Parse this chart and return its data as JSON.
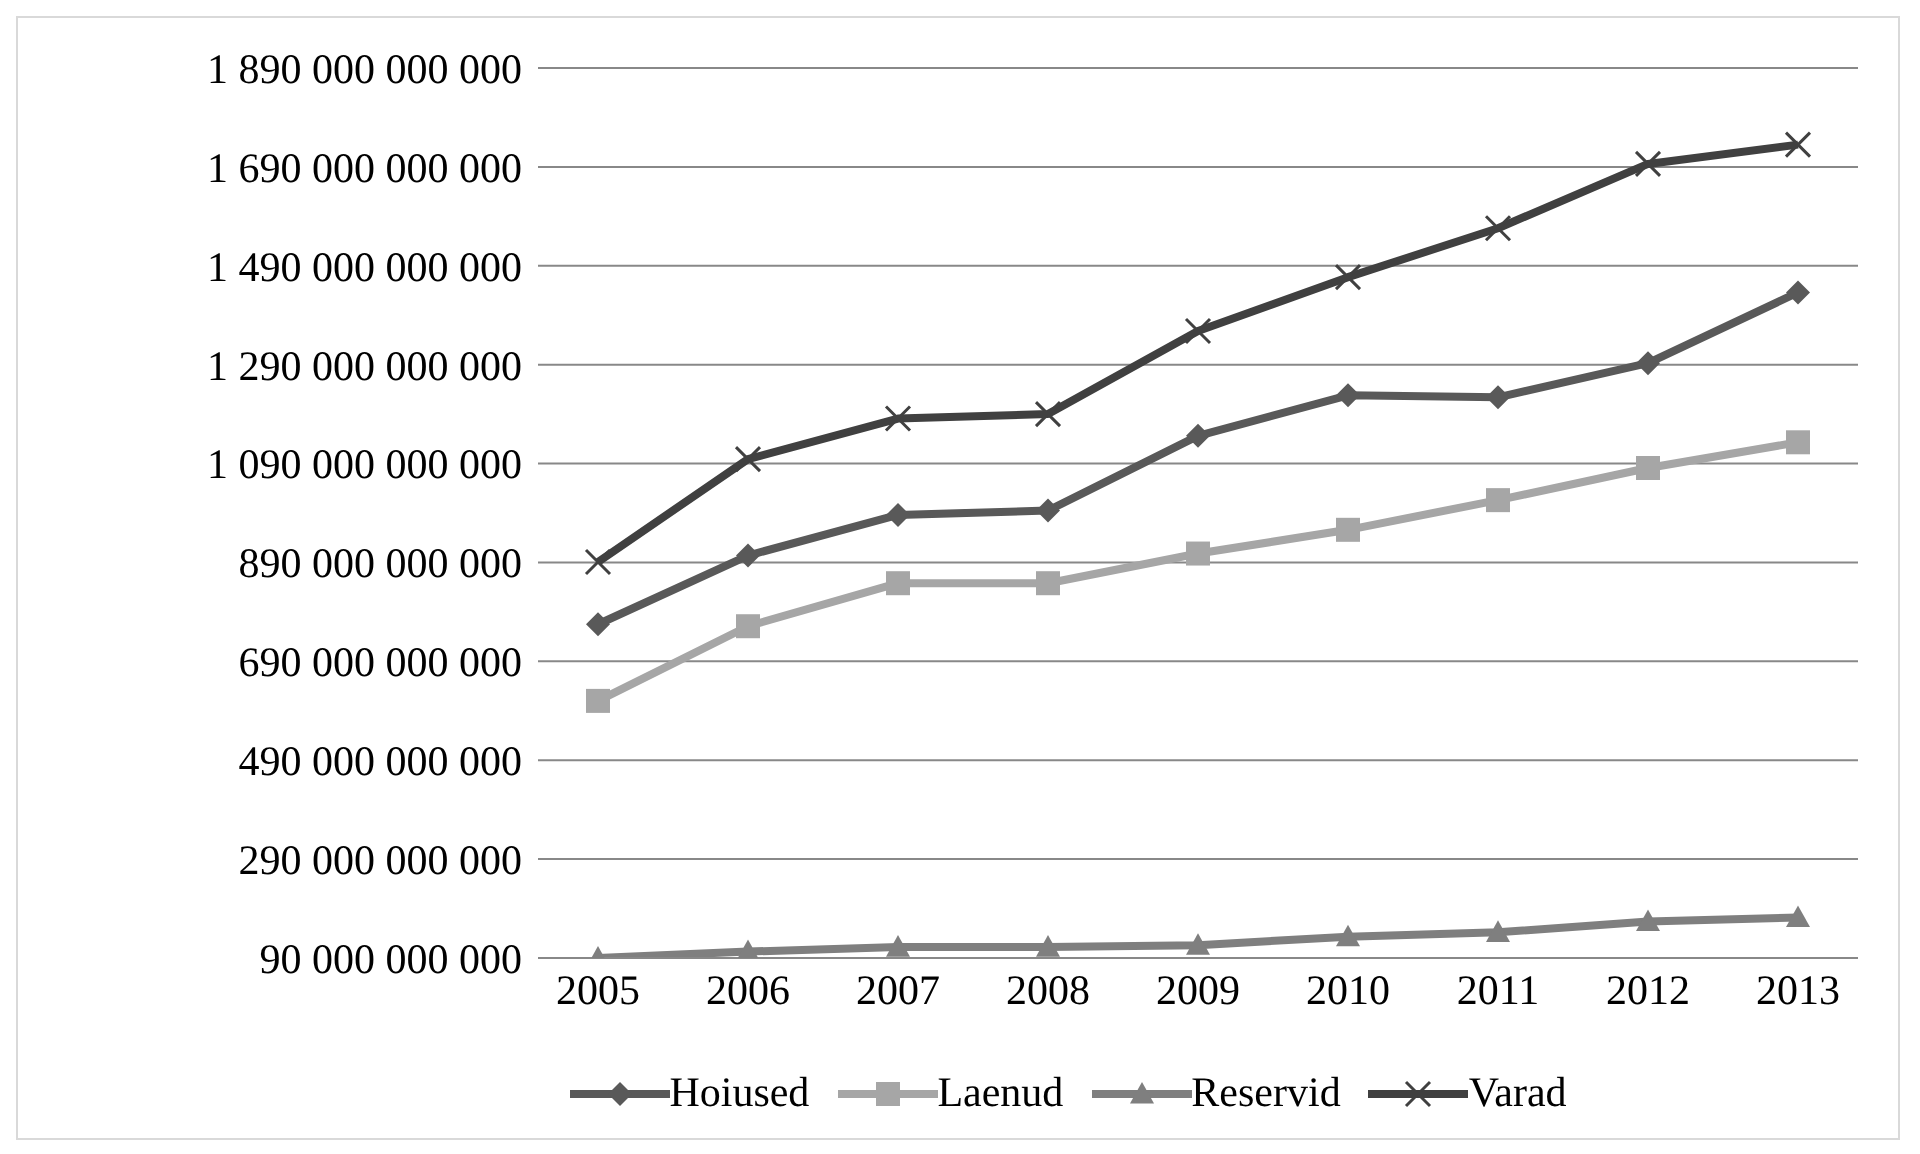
{
  "chart_data": {
    "type": "line",
    "categories": [
      "2005",
      "2006",
      "2007",
      "2008",
      "2009",
      "2010",
      "2011",
      "2012",
      "2013"
    ],
    "series": [
      {
        "name": "Hoiused",
        "color": "#595959",
        "marker": "diamond",
        "values": [
          765000000000,
          904000000000,
          986000000000,
          995000000000,
          1146000000000,
          1228000000000,
          1224000000000,
          1293000000000,
          1436000000000
        ]
      },
      {
        "name": "Laenud",
        "color": "#a6a6a6",
        "marker": "square",
        "values": [
          610000000000,
          761000000000,
          848000000000,
          848000000000,
          908000000000,
          956000000000,
          1016000000000,
          1081000000000,
          1133000000000
        ]
      },
      {
        "name": "Reservid",
        "color": "#7f7f7f",
        "marker": "triangle",
        "values": [
          90000000000,
          103000000000,
          112000000000,
          112000000000,
          116000000000,
          133000000000,
          142000000000,
          164000000000,
          172000000000
        ]
      },
      {
        "name": "Varad",
        "color": "#404040",
        "marker": "cross",
        "values": [
          891000000000,
          1099000000000,
          1181000000000,
          1190000000000,
          1358000000000,
          1467000000000,
          1566000000000,
          1696000000000,
          1735000000000
        ]
      }
    ],
    "ylim": [
      90000000000,
      1890000000000
    ],
    "yticks": [
      {
        "value": 90000000000,
        "label": "90 000 000 000"
      },
      {
        "value": 290000000000,
        "label": "290 000 000 000"
      },
      {
        "value": 490000000000,
        "label": "490 000 000 000"
      },
      {
        "value": 690000000000,
        "label": "690 000 000 000"
      },
      {
        "value": 890000000000,
        "label": "890 000 000 000"
      },
      {
        "value": 1090000000000,
        "label": "1 090 000 000 000"
      },
      {
        "value": 1290000000000,
        "label": "1 290 000 000 000"
      },
      {
        "value": 1490000000000,
        "label": "1 490 000 000 000"
      },
      {
        "value": 1690000000000,
        "label": "1 690 000 000 000"
      },
      {
        "value": 1890000000000,
        "label": "1 890 000 000 000"
      }
    ],
    "grid": "y",
    "legend": "bottom",
    "line_style": "solid"
  }
}
